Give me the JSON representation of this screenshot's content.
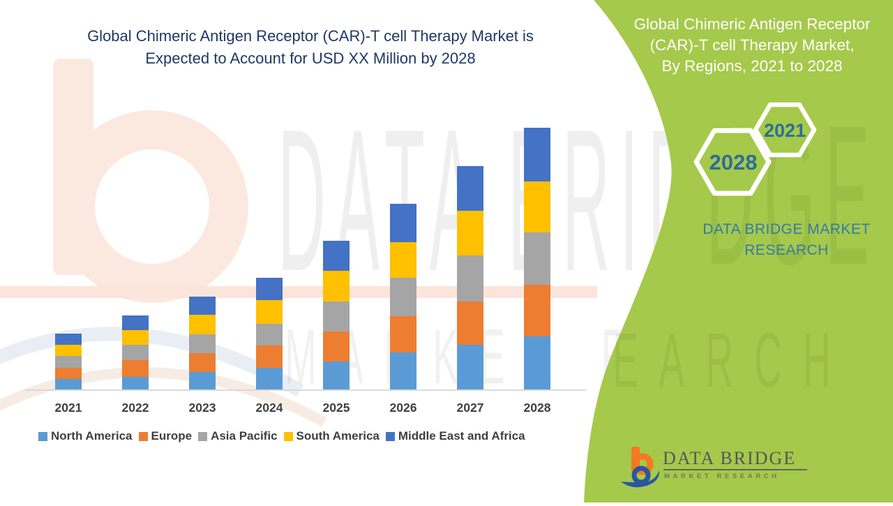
{
  "chart": {
    "title_line1": "Global Chimeric Antigen Receptor (CAR)-T cell Therapy Market is",
    "title_line2": "Expected to Account for USD XX Million by 2028",
    "title_color": "#1F3864"
  },
  "chart_data": {
    "type": "bar",
    "stacked": true,
    "title": "Global Chimeric Antigen Receptor (CAR)-T cell Therapy Market is Expected to Account for USD XX Million by 2028",
    "categories": [
      "2021",
      "2022",
      "2023",
      "2024",
      "2025",
      "2026",
      "2027",
      "2028"
    ],
    "series": [
      {
        "name": "North America",
        "color": "#5B9BD5",
        "values": [
          17,
          20,
          27,
          33,
          42,
          55,
          66,
          78
        ]
      },
      {
        "name": "Europe",
        "color": "#ED7D31",
        "values": [
          16,
          24,
          27,
          32,
          43,
          52,
          62,
          74
        ]
      },
      {
        "name": "Asia Pacific",
        "color": "#A5A5A5",
        "values": [
          17,
          22,
          27,
          31,
          43,
          55,
          66,
          75
        ]
      },
      {
        "name": "South America",
        "color": "#FFC000",
        "values": [
          16,
          21,
          28,
          34,
          44,
          51,
          64,
          73
        ]
      },
      {
        "name": "Middle East and Africa",
        "color": "#4472C4",
        "values": [
          16,
          21,
          26,
          32,
          43,
          55,
          64,
          77
        ]
      }
    ],
    "stack_totals": [
      82,
      108,
      135,
      162,
      215,
      268,
      322,
      377
    ],
    "units": "relative estimate, actual values masked as USD XX Million",
    "xlabel": "",
    "ylabel": "",
    "y_axis_visible": false,
    "grid": false,
    "legend_position": "bottom"
  },
  "side_panel": {
    "background": "#A5C94B",
    "title_line1": "Global Chimeric Antigen Receptor",
    "title_line2": "(CAR)-T cell Therapy Market,",
    "title_line3": "By Regions, 2021 to 2028",
    "hexagon_year_top": "2021",
    "hexagon_year_bottom": "2028",
    "year_text_color": "#2C6E97",
    "brand_line1": "DATA BRIDGE MARKET",
    "brand_line2": "RESEARCH",
    "brand_color": "#3679A8"
  },
  "logo": {
    "name": "DATA BRIDGE",
    "tagline": "MARKET  RESEARCH",
    "orange": "#F4791F",
    "blue": "#2B55A0"
  },
  "watermark": {
    "brand_text": "DATA BRIDGE",
    "brand_text_green_tail": "DGE",
    "tagline_text": "MARKET RESEARCH",
    "tagline_text_green_tail": "EARCH"
  }
}
